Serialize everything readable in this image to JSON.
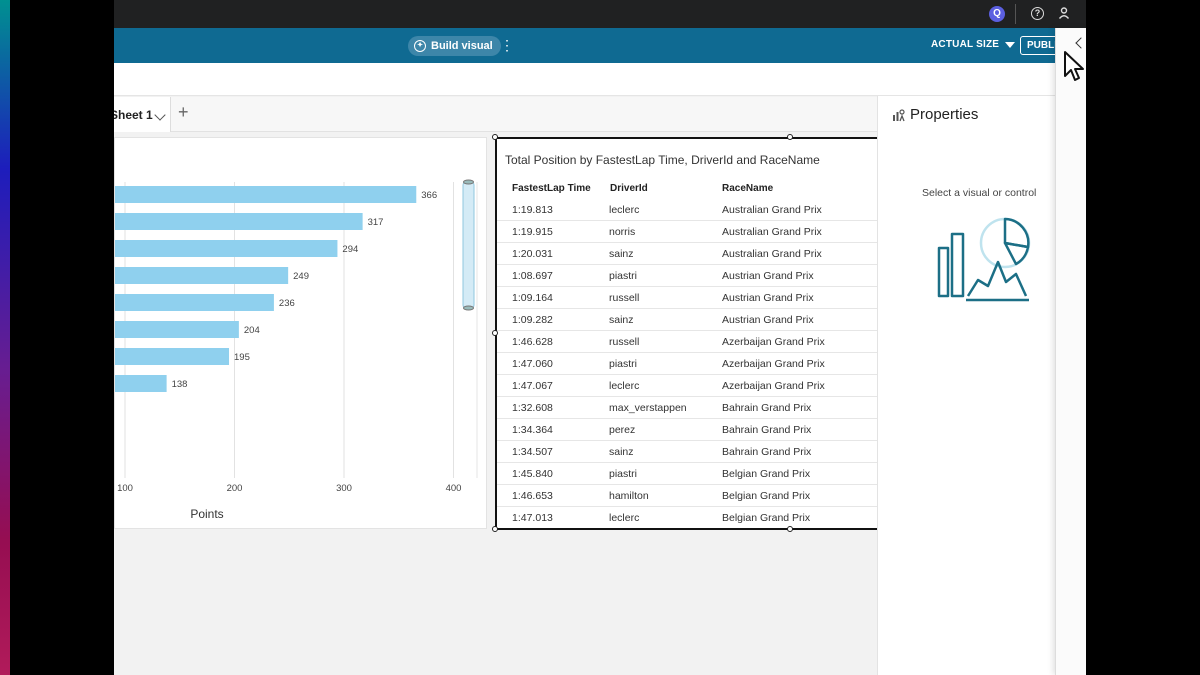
{
  "toolbar": {
    "build_visual_label": "Build visual",
    "actual_size_label": "ACTUAL SIZE",
    "publish_label": "PUBLISH"
  },
  "sheets": {
    "tab_label": "Sheet 1"
  },
  "chart_data": {
    "type": "bar",
    "orientation": "horizontal",
    "categories": [
      "",
      "",
      "",
      "",
      "",
      "",
      "",
      ""
    ],
    "values": [
      366,
      317,
      294,
      249,
      236,
      204,
      195,
      138
    ],
    "xlabel": "Points",
    "xticks": [
      100,
      200,
      300,
      400
    ],
    "xlim": [
      90,
      420
    ],
    "grid": true,
    "color": "#8fd0ee"
  },
  "table": {
    "title": "Total Position by FastestLap Time, DriverId and RaceName",
    "columns": [
      "FastestLap Time",
      "DriverId",
      "RaceName"
    ],
    "rows": [
      [
        "1:19.813",
        "leclerc",
        "Australian Grand Prix"
      ],
      [
        "1:19.915",
        "norris",
        "Australian Grand Prix"
      ],
      [
        "1:20.031",
        "sainz",
        "Australian Grand Prix"
      ],
      [
        "1:08.697",
        "piastri",
        "Austrian Grand Prix"
      ],
      [
        "1:09.164",
        "russell",
        "Austrian Grand Prix"
      ],
      [
        "1:09.282",
        "sainz",
        "Austrian Grand Prix"
      ],
      [
        "1:46.628",
        "russell",
        "Azerbaijan Grand Prix"
      ],
      [
        "1:47.060",
        "piastri",
        "Azerbaijan Grand Prix"
      ],
      [
        "1:47.067",
        "leclerc",
        "Azerbaijan Grand Prix"
      ],
      [
        "1:32.608",
        "max_verstappen",
        "Bahrain Grand Prix"
      ],
      [
        "1:34.364",
        "perez",
        "Bahrain Grand Prix"
      ],
      [
        "1:34.507",
        "sainz",
        "Bahrain Grand Prix"
      ],
      [
        "1:45.840",
        "piastri",
        "Belgian Grand Prix"
      ],
      [
        "1:46.653",
        "hamilton",
        "Belgian Grand Prix"
      ],
      [
        "1:47.013",
        "leclerc",
        "Belgian Grand Prix"
      ]
    ]
  },
  "properties": {
    "title": "Properties",
    "hint": "Select a visual or control"
  },
  "icons": {
    "app_logo": "quicksight-logo-icon",
    "help": "help-icon",
    "user": "user-icon",
    "collapse": "chevron-left-icon",
    "cursor": "mouse-pointer-icon"
  },
  "colors": {
    "toolbar": "#0f6a92",
    "bar": "#8fd0ee",
    "illustration": "#1c6f86"
  }
}
